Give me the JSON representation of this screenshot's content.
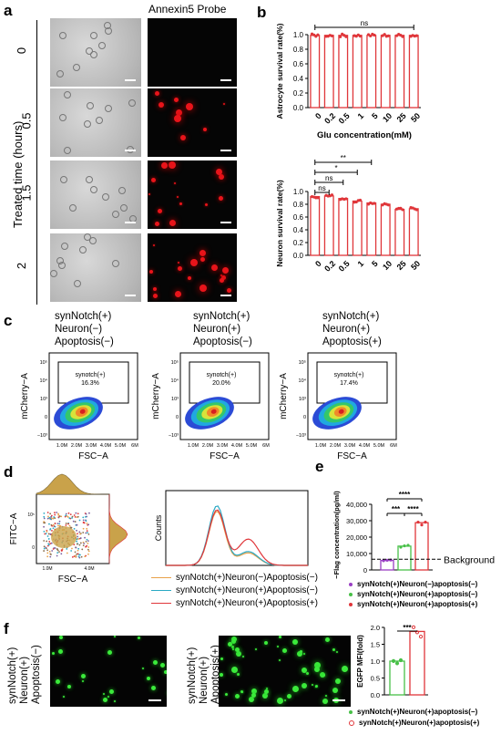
{
  "panels": {
    "a": {
      "label": "a",
      "column_header": "Annexin5 Probe",
      "ylabel": "Treated time (hours)",
      "rows": [
        "0",
        "0.5",
        "1.5",
        "2"
      ]
    },
    "b": {
      "label": "b"
    },
    "c": {
      "label": "c",
      "titles": [
        [
          "synNotch(+)",
          "Neuron(−)",
          "Apoptosis(−)"
        ],
        [
          "synNotch(+)",
          "Neuron(+)",
          "Apoptosis(−)"
        ],
        [
          "synNotch(+)",
          "Neuron(+)",
          "Apoptosis(+)"
        ]
      ],
      "gate_label": "synotch(+)",
      "gate_values": [
        "16.3%",
        "20.0%",
        "17.4%"
      ],
      "ylabel": "mCherry−A",
      "xlabel": "FSC−A",
      "xticks": [
        "1.0M",
        "2.0M",
        "3.0M",
        "4.0M",
        "5.0M",
        "6M"
      ],
      "yticks": [
        "10⁵",
        "10⁴",
        "10³",
        "0",
        "−10³"
      ]
    },
    "d": {
      "label": "d",
      "ylabel": "FITC−A",
      "xlabel": "FSC−A",
      "xticks": [
        "1.0M",
        "4.0M"
      ],
      "yticks": [
        "10⁵",
        "0"
      ],
      "hist_ylabel": "Counts",
      "legend": [
        "synNotch(+)Neuron(−)Apoptosis(−)",
        "synNotch(+)Neuron(+)Apoptosis(−)",
        "synNotch(+)Neuron(+)Apoptosis(+)"
      ],
      "colors": [
        "#e8a24a",
        "#2aa9c4",
        "#e0363a"
      ]
    },
    "e": {
      "label": "e",
      "background_label": "Background",
      "legend": [
        "synNotch(+)Neuron(−)apoptosis(−)",
        "synNotch(+)Neuron(+)apoptosis(−)",
        "synNotch(+)Neuron(+)apoptosis(+)"
      ],
      "legend_colors": [
        "#9a3fc4",
        "#48c048",
        "#e0363a"
      ]
    },
    "f": {
      "label": "f",
      "row_labels": [
        [
          "synNotch(+)",
          "Neuron(+)",
          "Apoptosis(−)"
        ],
        [
          "synNotch(+)",
          "Neuron(+)",
          "Apoptosis(+)"
        ]
      ],
      "legend": [
        "synNotch(+)Neuron(+)apoptosis(−)",
        "synNotch(+)Neuron(+)apoptosis(+)"
      ],
      "legend_colors": [
        "#48c048",
        "#e0363a"
      ]
    }
  },
  "chart_data": [
    {
      "id": "b-top",
      "type": "bar",
      "ylabel": "Astrocyte survival rate(%)",
      "xlabel": "Glu concentration(mM)",
      "categories": [
        "0",
        "0.2",
        "0.5",
        "1",
        "5",
        "10",
        "25",
        "50"
      ],
      "values": [
        0.99,
        0.99,
        0.99,
        0.99,
        0.99,
        0.99,
        0.99,
        0.99
      ],
      "ylim": [
        0,
        1.0
      ],
      "yticks": [
        "0.0",
        "0.2",
        "0.4",
        "0.6",
        "0.8",
        "1.0"
      ],
      "annotations": [
        {
          "text": "ns",
          "from": "0",
          "to": "50"
        }
      ],
      "color": "#e0363a"
    },
    {
      "id": "b-bottom",
      "type": "bar",
      "ylabel": "Neuron survival rate(%)",
      "xlabel": "Glu concentration(mM)",
      "categories": [
        "0",
        "0.2",
        "0.5",
        "1",
        "5",
        "10",
        "25",
        "50"
      ],
      "values": [
        0.92,
        0.93,
        0.89,
        0.85,
        0.82,
        0.8,
        0.72,
        0.73
      ],
      "ylim": [
        0,
        1.0
      ],
      "yticks": [
        "0.0",
        "0.2",
        "0.4",
        "0.6",
        "0.8",
        "1.0"
      ],
      "annotations": [
        {
          "text": "ns",
          "from": "0",
          "to": "0.2"
        },
        {
          "text": "ns",
          "from": "0",
          "to": "0.5"
        },
        {
          "text": "*",
          "from": "0",
          "to": "1"
        },
        {
          "text": "**",
          "from": "0",
          "to": "5"
        }
      ],
      "color": "#e0363a"
    },
    {
      "id": "e",
      "type": "bar",
      "ylabel": "BDNF−Flag concentration(pg/ml)",
      "categories": [
        "synNotch(+)Neuron(−)apoptosis(−)",
        "synNotch(+)Neuron(+)apoptosis(−)",
        "synNotch(+)Neuron(+)apoptosis(+)"
      ],
      "values": [
        5800,
        14500,
        28800
      ],
      "ylim": [
        0,
        40000
      ],
      "yticks": [
        "0",
        "10,000",
        "20,000",
        "30,000",
        "40,000"
      ],
      "background_value": 6500,
      "annotations": [
        {
          "text": "***",
          "from": 0,
          "to": 1
        },
        {
          "text": "****",
          "from": 1,
          "to": 2
        },
        {
          "text": "****",
          "from": 0,
          "to": 2
        }
      ],
      "colors": [
        "#9a3fc4",
        "#48c048",
        "#e0363a"
      ]
    },
    {
      "id": "f",
      "type": "bar",
      "ylabel": "EGFP MFI(fold)",
      "categories": [
        "synNotch(+)Neuron(+)apoptosis(−)",
        "synNotch(+)Neuron(+)apoptosis(+)"
      ],
      "values": [
        1.0,
        1.88
      ],
      "ylim": [
        0,
        2.0
      ],
      "yticks": [
        "0.0",
        "0.5",
        "1.0",
        "1.5",
        "2.0"
      ],
      "annotations": [
        {
          "text": "***",
          "from": 0,
          "to": 1
        }
      ],
      "colors": [
        "#48c048",
        "#e0363a"
      ]
    }
  ]
}
